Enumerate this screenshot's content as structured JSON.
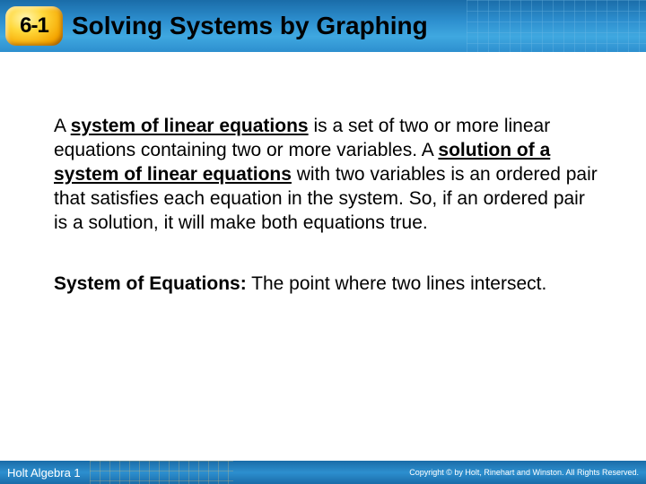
{
  "header": {
    "section_number": "6-1",
    "title": "Solving Systems by Graphing",
    "bg_top": "#1a6ca8",
    "bg_mid": "#2d8fcf",
    "badge_bg": "#ffd83a"
  },
  "body": {
    "p1_lead": "A ",
    "p1_term1": "system of linear equations",
    "p1_mid1": " is a set of two or more linear equations containing two or more variables. A ",
    "p1_term2": "solution of a system of linear equations",
    "p1_mid2": " with two variables is an ordered pair that satisfies each equation in the system. So, if an ordered pair is a solution, it will make both equations true.",
    "p2_label": "System of Equations:",
    "p2_text": " The point where two lines intersect."
  },
  "footer": {
    "left": "Holt Algebra 1",
    "right": "Copyright © by Holt, Rinehart and Winston. All Rights Reserved."
  },
  "colors": {
    "text": "#000000",
    "footer_text": "#ffffff"
  },
  "typography": {
    "title_fontsize": 28,
    "body_fontsize": 21,
    "footer_fontsize": 13
  }
}
